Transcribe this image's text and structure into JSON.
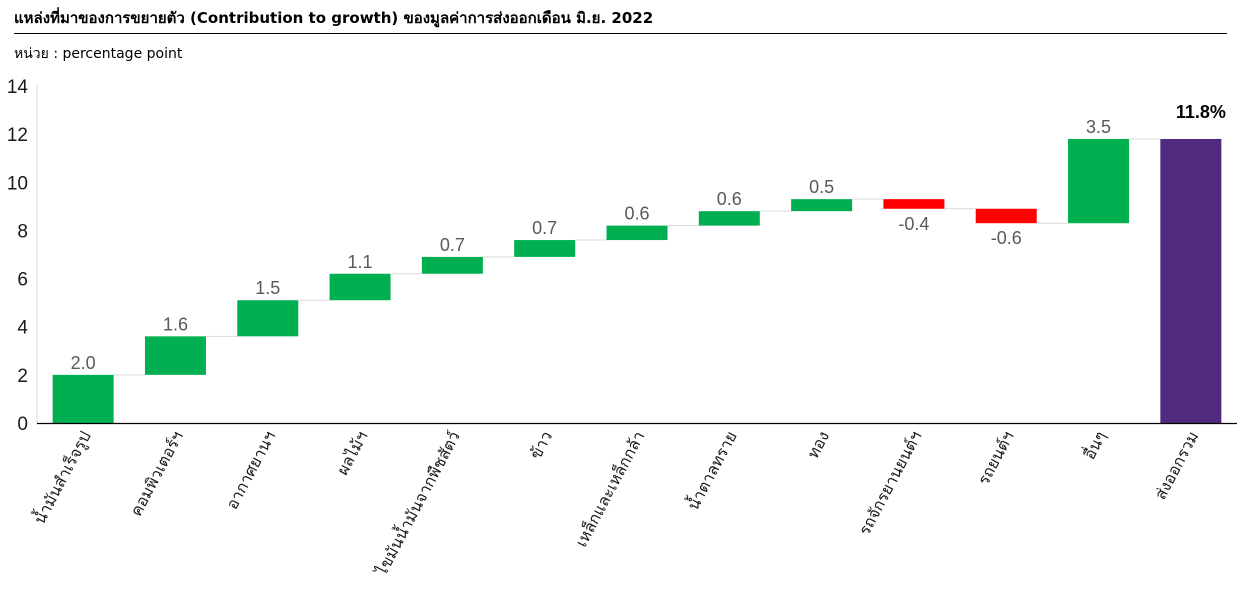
{
  "header": {
    "title": "แหล่งที่มาของการขยายตัว (Contribution to growth) ของมูลค่าการส่งออกเดือน มิ.ย. 2022",
    "unit": "หน่วย : percentage point"
  },
  "colors": {
    "positive": "#00b050",
    "negative": "#ff0000",
    "total": "#4f2a7e",
    "axis": "#000000",
    "connector": "#d9d9d9"
  },
  "chart_data": {
    "type": "bar",
    "subtype": "waterfall",
    "title": "แหล่งที่มาของการขยายตัว (Contribution to growth) ของมูลค่าการส่งออกเดือน มิ.ย. 2022",
    "ylabel": "หน่วย : percentage point",
    "ylim": [
      0,
      14
    ],
    "yticks": [
      "0",
      "2",
      "4",
      "6",
      "8",
      "10",
      "12",
      "14"
    ],
    "grid": false,
    "categories": [
      "น้ำมันสำเร็จรูป",
      "คอมพิวเตอร์ฯ",
      "อากาศยานฯ",
      "ผลไม้ฯ",
      "ไขมันน้ำมันจากพืชสัตว์",
      "ข้าว",
      "เหล็กและเหล็กกล้า",
      "น้ำตาลทราย",
      "ทอง",
      "รถจักรยานยนต์ฯ",
      "รถยนต์ฯ",
      "อื่นๆ",
      "ส่งออกรวม"
    ],
    "values": [
      2.0,
      1.6,
      1.5,
      1.1,
      0.7,
      0.7,
      0.6,
      0.6,
      0.5,
      -0.4,
      -0.6,
      3.5,
      11.8
    ],
    "labels": [
      "2.0",
      "1.6",
      "1.5",
      "1.1",
      "0.7",
      "0.7",
      "0.6",
      "0.6",
      "0.5",
      "-0.4",
      "-0.6",
      "3.5",
      "11.8%"
    ],
    "total_index": 12
  }
}
